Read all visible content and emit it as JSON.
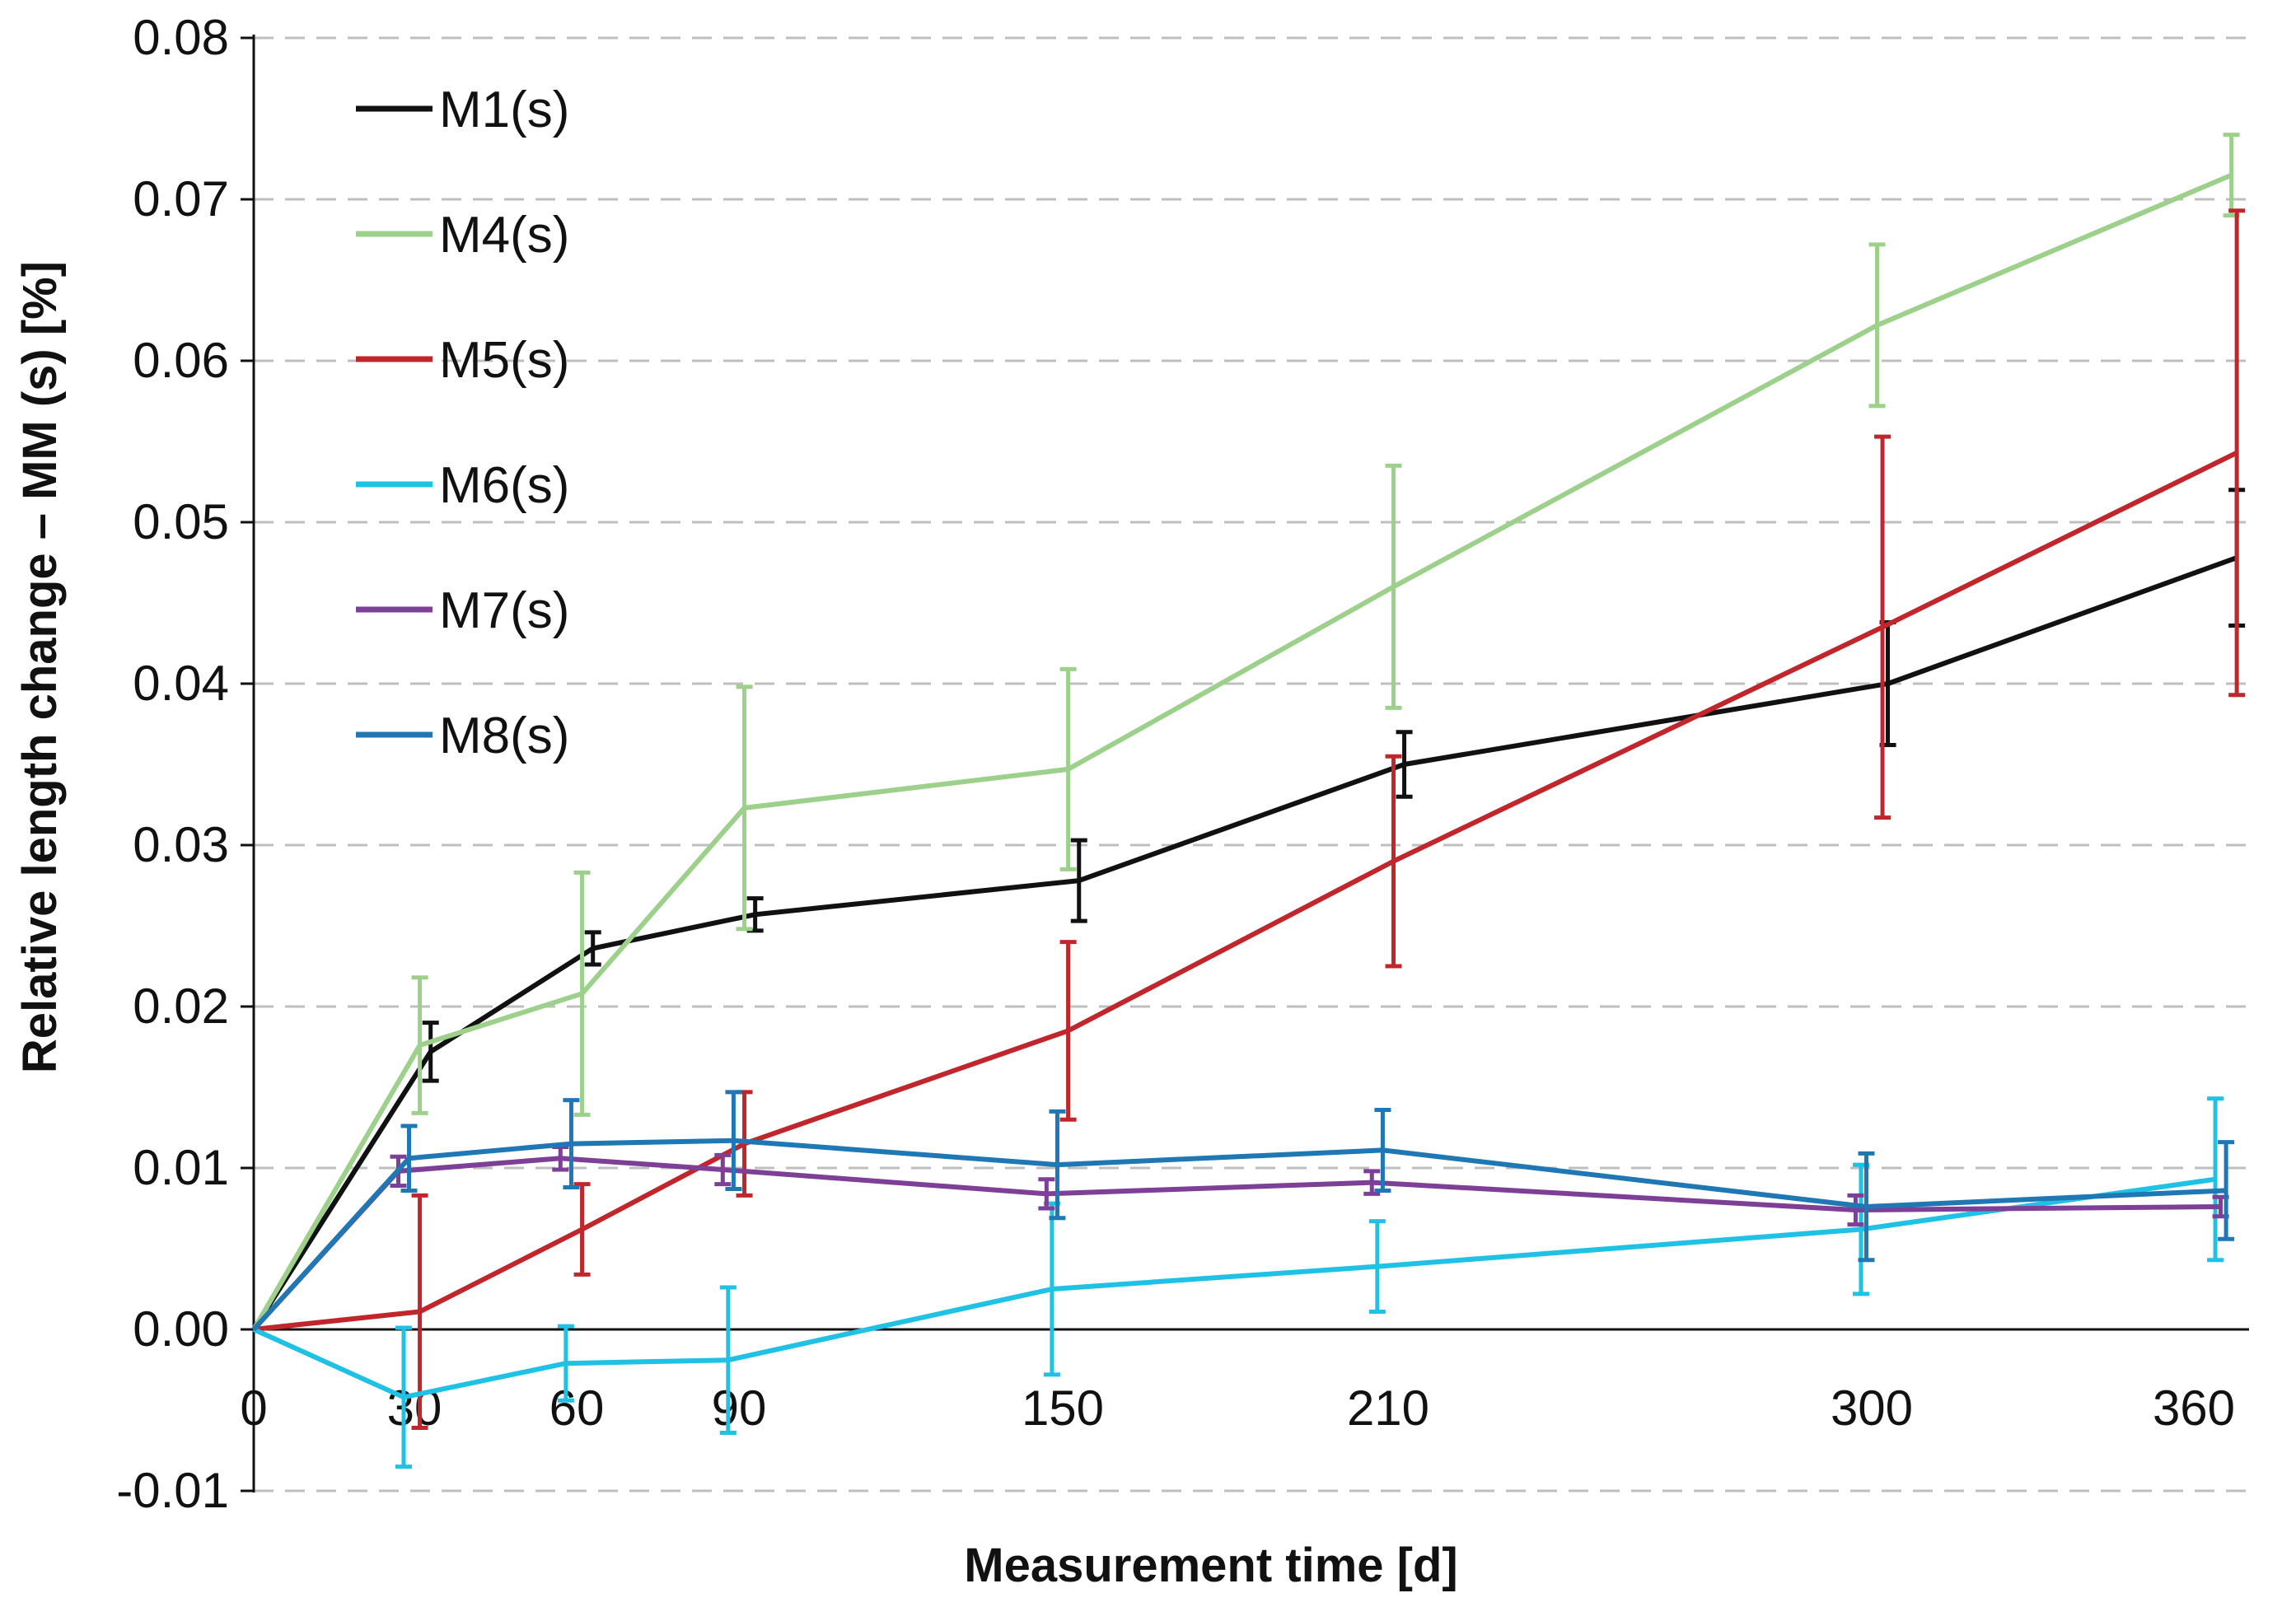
{
  "chart_data": {
    "type": "line",
    "xlabel": "Measurement time [d]",
    "ylabel": "Relative length change – MM (s) [%]",
    "x_ticks": [
      "0",
      "30",
      "60",
      "90",
      "150",
      "210",
      "300",
      "360"
    ],
    "y_ticks": [
      "-0.01",
      "0.00",
      "0.01",
      "0.02",
      "0.03",
      "0.04",
      "0.05",
      "0.06",
      "0.07",
      "0.08"
    ],
    "ylim": [
      -0.01,
      0.08
    ],
    "xlim": [
      0,
      360
    ],
    "grid": "horizontal dashed",
    "legend_position": "top-left",
    "series": [
      {
        "name": "M1(s)",
        "color": "#111111",
        "x": [
          0,
          33,
          63,
          93,
          153,
          213,
          303,
          368
        ],
        "y": [
          0,
          0.0172,
          0.0236,
          0.0257,
          0.0278,
          0.035,
          0.04,
          0.0478
        ],
        "err": [
          0,
          0.0018,
          0.001,
          0.001,
          0.0025,
          0.002,
          0.0038,
          0.0042
        ]
      },
      {
        "name": "M4(s)",
        "color": "#9dd08b",
        "x": [
          0,
          31,
          61,
          91,
          151,
          211,
          301,
          367
        ],
        "y": [
          0,
          0.0176,
          0.0208,
          0.0323,
          0.0347,
          0.046,
          0.0622,
          0.0715
        ],
        "err": [
          0,
          0.0042,
          0.0075,
          0.0075,
          0.0062,
          0.0075,
          0.005,
          0.0025
        ]
      },
      {
        "name": "M5(s)",
        "color": "#c0262b",
        "x": [
          0,
          31,
          61,
          91,
          151,
          211,
          302,
          368
        ],
        "y": [
          0,
          0.0011,
          0.0062,
          0.0115,
          0.0185,
          0.029,
          0.0435,
          0.0543
        ],
        "err": [
          0,
          0.0072,
          0.0028,
          0.0032,
          0.0055,
          0.0065,
          0.0118,
          0.015
        ]
      },
      {
        "name": "M6(s)",
        "color": "#1fc1e4",
        "x": [
          0,
          28,
          58,
          88,
          148,
          208,
          298,
          364
        ],
        "y": [
          0,
          -0.0042,
          -0.0021,
          -0.0019,
          0.0025,
          0.0039,
          0.0062,
          0.0093
        ],
        "err": [
          0,
          0.0043,
          0.0023,
          0.0045,
          0.0053,
          0.0028,
          0.004,
          0.005
        ]
      },
      {
        "name": "M7(s)",
        "color": "#7e3f97",
        "x": [
          0,
          27,
          57,
          87,
          147,
          207,
          297,
          365
        ],
        "y": [
          0,
          0.0098,
          0.0106,
          0.0099,
          0.0084,
          0.0091,
          0.0074,
          0.0076
        ],
        "err": [
          0,
          0.0009,
          0.0007,
          0.0009,
          0.0009,
          0.0007,
          0.0009,
          0.0006
        ]
      },
      {
        "name": "M8(s)",
        "color": "#1f77b4",
        "x": [
          0,
          29,
          59,
          89,
          149,
          209,
          299,
          366
        ],
        "y": [
          0,
          0.0106,
          0.0115,
          0.0117,
          0.0102,
          0.0111,
          0.0076,
          0.0086
        ],
        "err": [
          0,
          0.002,
          0.0027,
          0.003,
          0.0033,
          0.0025,
          0.0033,
          0.003
        ]
      }
    ]
  }
}
